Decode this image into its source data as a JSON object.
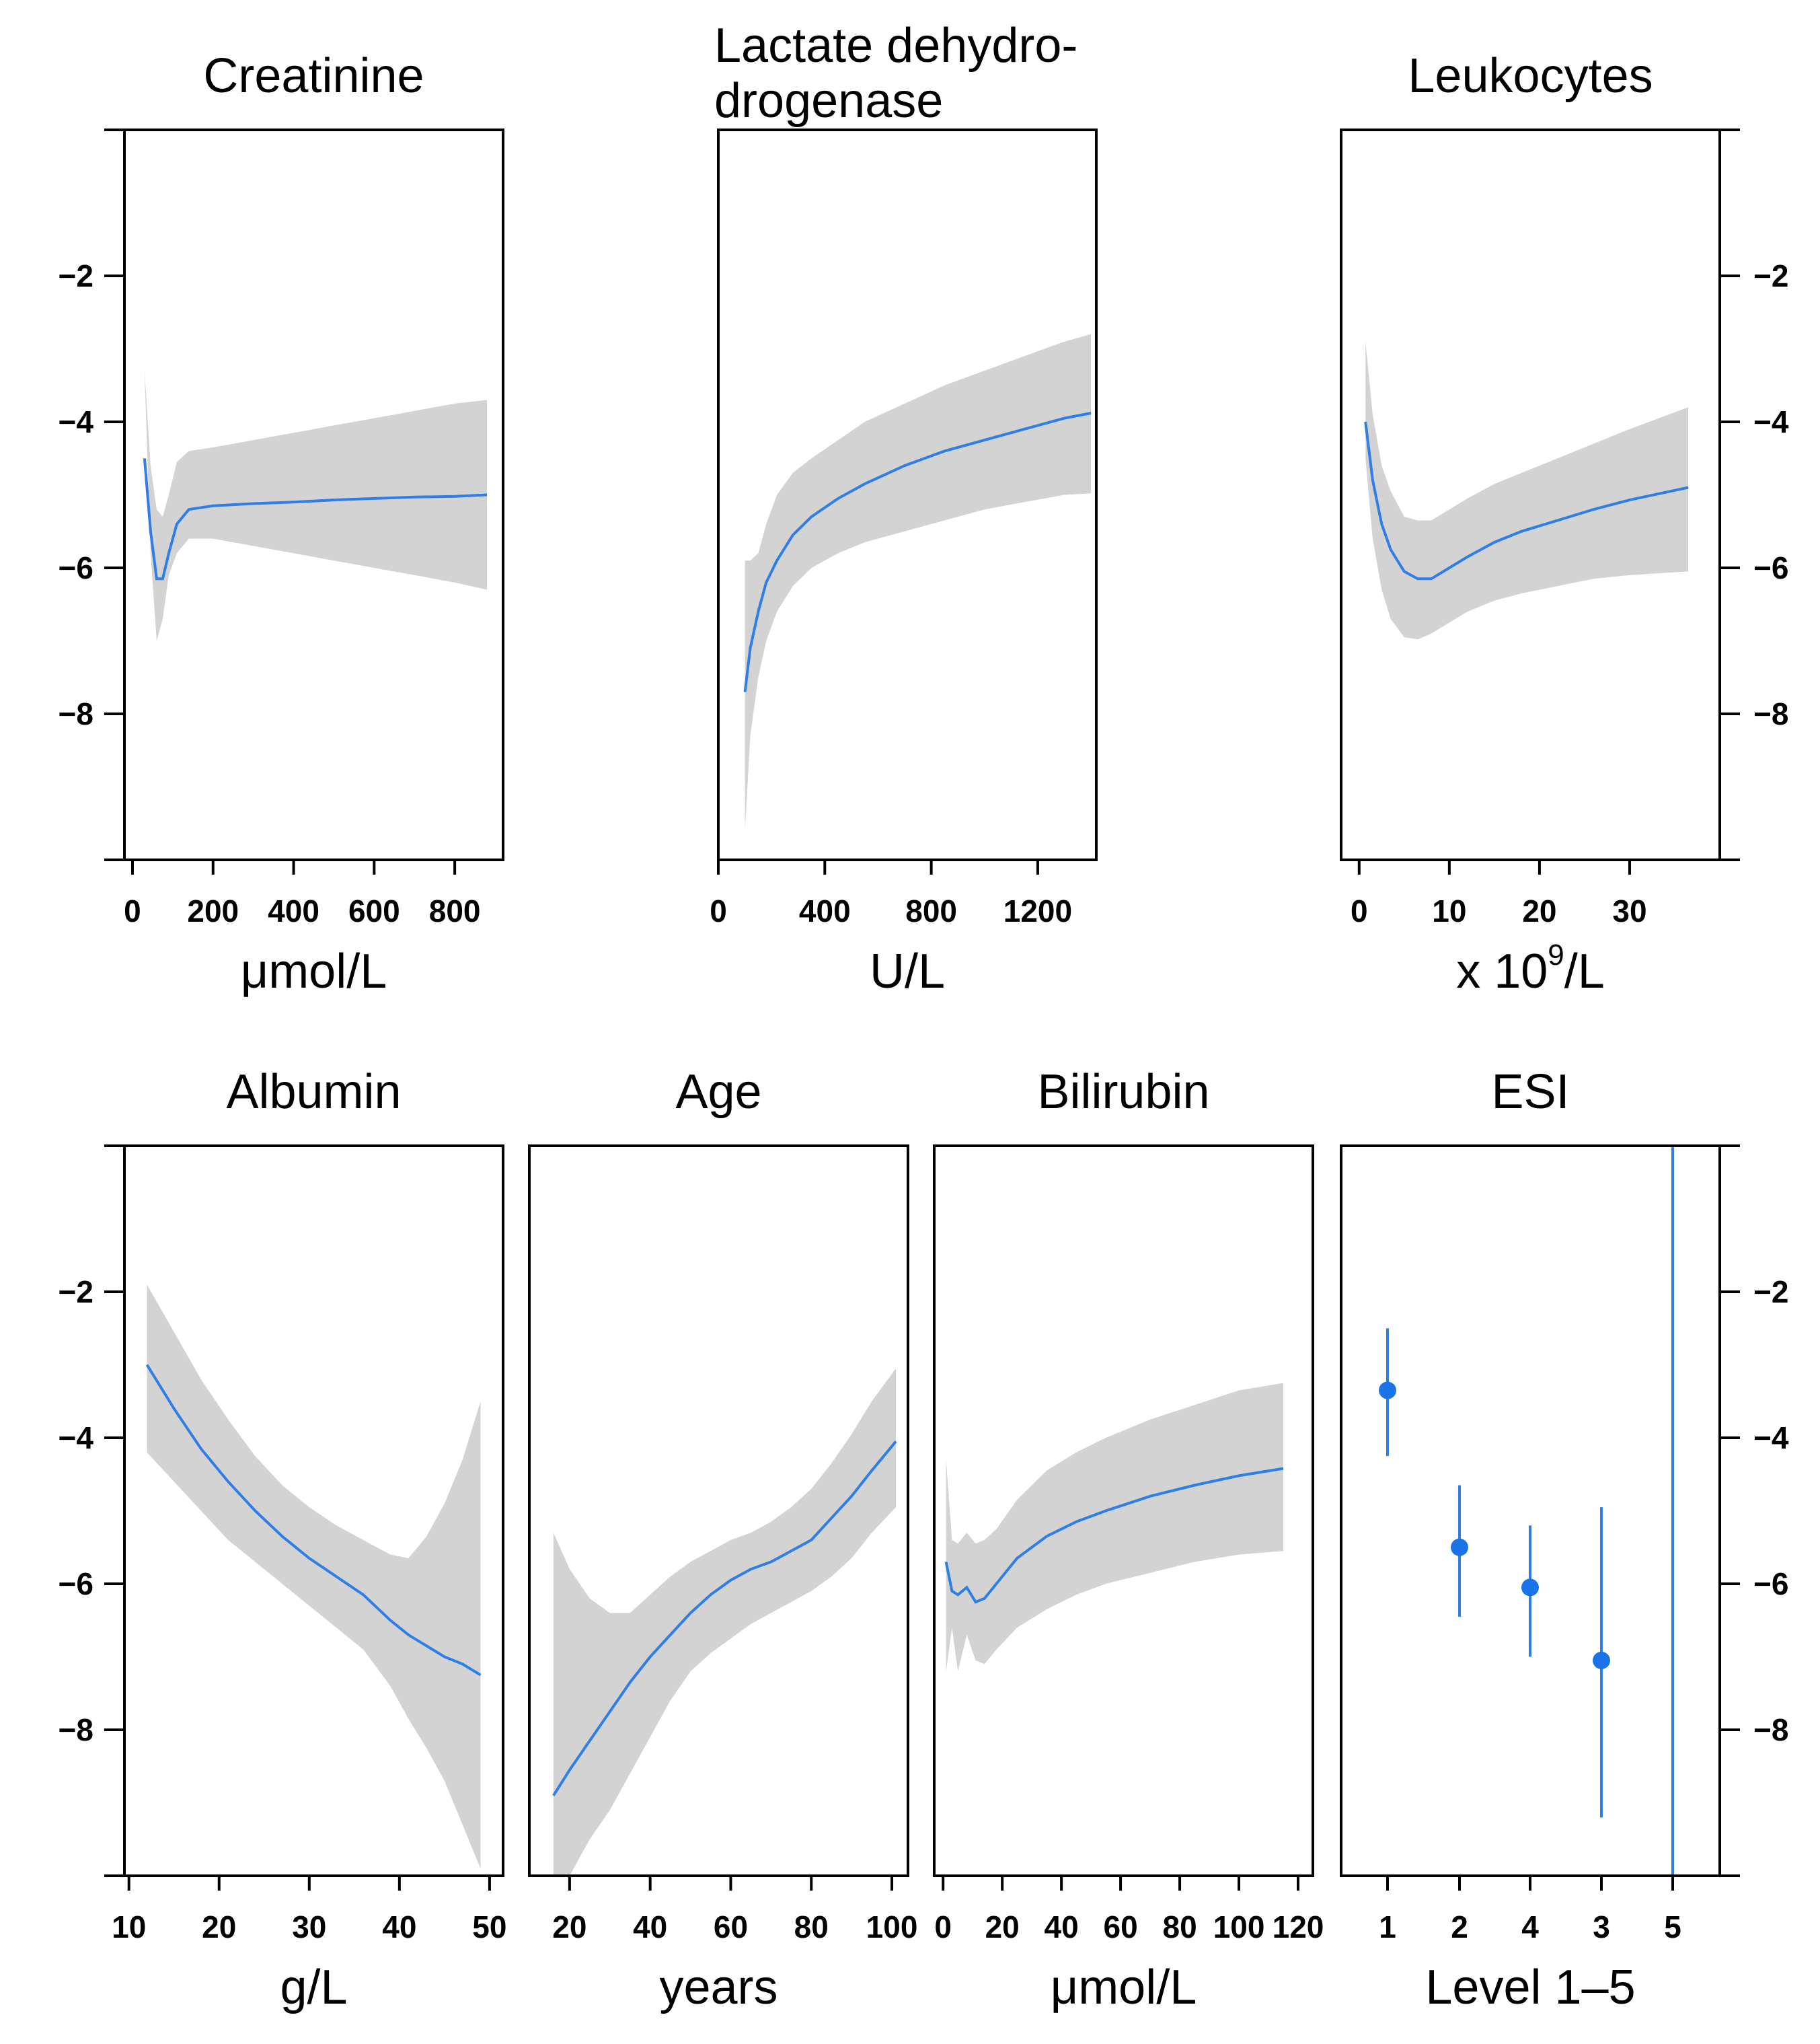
{
  "colors": {
    "curve": "#2f7ee6",
    "band": "#d3d3d3",
    "point": "#1a74e8",
    "axis": "#000000"
  },
  "chart_data": [
    {
      "id": "creatinine",
      "type": "line",
      "title": "Creatinine",
      "xlabel": "μmol/L",
      "xticks": [
        0,
        200,
        400,
        600,
        800
      ],
      "xlim": [
        -20,
        920
      ],
      "yticks": [
        -2,
        -4,
        -6,
        -8
      ],
      "ylim": [
        -10,
        0
      ],
      "yaxis_labels": "left",
      "x": [
        30,
        45,
        60,
        75,
        90,
        110,
        140,
        200,
        300,
        400,
        500,
        600,
        700,
        800,
        880
      ],
      "y": [
        -4.5,
        -5.5,
        -6.15,
        -6.15,
        -5.8,
        -5.4,
        -5.2,
        -5.15,
        -5.12,
        -5.1,
        -5.07,
        -5.05,
        -5.03,
        -5.02,
        -5.0
      ],
      "lower": [
        -3.3,
        -5.8,
        -7.0,
        -6.7,
        -6.1,
        -5.8,
        -5.6,
        -5.6,
        -5.7,
        -5.8,
        -5.9,
        -6.0,
        -6.1,
        -6.2,
        -6.3
      ],
      "upper": [
        -3.3,
        -4.6,
        -5.2,
        -5.3,
        -5.0,
        -4.55,
        -4.4,
        -4.35,
        -4.25,
        -4.15,
        -4.05,
        -3.95,
        -3.85,
        -3.75,
        -3.7
      ]
    },
    {
      "id": "ldh",
      "type": "line",
      "title": "Lactate dehydro-drogenase",
      "title_lines": [
        "Lactate dehydro-",
        "drogenase"
      ],
      "xlabel": "U/L",
      "xticks": [
        0,
        400,
        800,
        1200
      ],
      "xlim": [
        0,
        1420
      ],
      "yticks": [],
      "ylim": [
        -10,
        0
      ],
      "yaxis_labels": "none",
      "x": [
        100,
        120,
        150,
        180,
        220,
        280,
        350,
        450,
        550,
        700,
        850,
        1000,
        1150,
        1300,
        1400
      ],
      "y": [
        -7.7,
        -7.1,
        -6.6,
        -6.2,
        -5.9,
        -5.55,
        -5.3,
        -5.05,
        -4.85,
        -4.6,
        -4.4,
        -4.25,
        -4.1,
        -3.95,
        -3.88
      ],
      "lower": [
        -9.6,
        -8.3,
        -7.5,
        -7.0,
        -6.6,
        -6.25,
        -6.0,
        -5.8,
        -5.65,
        -5.5,
        -5.35,
        -5.2,
        -5.1,
        -5.0,
        -4.98
      ],
      "upper": [
        -5.9,
        -5.9,
        -5.8,
        -5.4,
        -5.0,
        -4.7,
        -4.5,
        -4.25,
        -4.0,
        -3.75,
        -3.5,
        -3.3,
        -3.1,
        -2.9,
        -2.8
      ]
    },
    {
      "id": "leukocytes",
      "type": "line",
      "title": "Leukocytes",
      "xlabel": "x 10⁹/L",
      "xticks": [
        0,
        10,
        20,
        30
      ],
      "xlim": [
        -2,
        40
      ],
      "yticks": [
        -2,
        -4,
        -6,
        -8
      ],
      "ylim": [
        -10,
        0
      ],
      "yaxis_labels": "right",
      "x": [
        0.7,
        1.5,
        2.5,
        3.5,
        5,
        6.5,
        8,
        10,
        12,
        15,
        18,
        22,
        26,
        30,
        36.5
      ],
      "y": [
        -4.0,
        -4.8,
        -5.4,
        -5.75,
        -6.05,
        -6.15,
        -6.15,
        -6.0,
        -5.85,
        -5.65,
        -5.5,
        -5.35,
        -5.2,
        -5.07,
        -4.9
      ],
      "lower": [
        -4.5,
        -5.6,
        -6.3,
        -6.7,
        -6.95,
        -6.98,
        -6.9,
        -6.75,
        -6.6,
        -6.45,
        -6.35,
        -6.25,
        -6.15,
        -6.1,
        -6.05
      ],
      "upper": [
        -2.9,
        -3.9,
        -4.6,
        -4.95,
        -5.3,
        -5.35,
        -5.35,
        -5.2,
        -5.05,
        -4.85,
        -4.7,
        -4.5,
        -4.3,
        -4.1,
        -3.8
      ]
    },
    {
      "id": "albumin",
      "type": "line",
      "title": "Albumin",
      "xlabel": "g/L",
      "xticks": [
        10,
        20,
        30,
        40,
        50
      ],
      "xlim": [
        9.5,
        51.5
      ],
      "yticks": [
        -2,
        -4,
        -6,
        -8
      ],
      "ylim": [
        -10,
        0
      ],
      "yaxis_labels": "left",
      "x": [
        12,
        15,
        18,
        21,
        24,
        27,
        30,
        33,
        36,
        39,
        41,
        43,
        45,
        47,
        49
      ],
      "y": [
        -3.0,
        -3.6,
        -4.15,
        -4.6,
        -5.0,
        -5.35,
        -5.65,
        -5.9,
        -6.15,
        -6.5,
        -6.7,
        -6.85,
        -7.0,
        -7.1,
        -7.25
      ],
      "lower": [
        -4.2,
        -4.6,
        -5.0,
        -5.4,
        -5.7,
        -6.0,
        -6.3,
        -6.6,
        -6.9,
        -7.4,
        -7.85,
        -8.25,
        -8.7,
        -9.3,
        -9.9
      ],
      "upper": [
        -1.9,
        -2.55,
        -3.2,
        -3.75,
        -4.25,
        -4.65,
        -4.95,
        -5.2,
        -5.4,
        -5.6,
        -5.65,
        -5.35,
        -4.9,
        -4.3,
        -3.5
      ]
    },
    {
      "id": "age",
      "type": "line",
      "title": "Age",
      "xlabel": "years",
      "xticks": [
        20,
        40,
        60,
        80,
        100
      ],
      "xlim": [
        10,
        104
      ],
      "yticks": [],
      "ylim": [
        -10,
        0
      ],
      "yaxis_labels": "none",
      "x": [
        16,
        20,
        25,
        30,
        35,
        40,
        45,
        50,
        55,
        60,
        65,
        70,
        75,
        80,
        85,
        90,
        95,
        101
      ],
      "y": [
        -8.9,
        -8.55,
        -8.15,
        -7.75,
        -7.35,
        -7.0,
        -6.7,
        -6.4,
        -6.15,
        -5.95,
        -5.8,
        -5.7,
        -5.55,
        -5.4,
        -5.1,
        -4.8,
        -4.45,
        -4.05
      ],
      "lower": [
        -10.0,
        -10.0,
        -9.5,
        -9.1,
        -8.6,
        -8.1,
        -7.6,
        -7.2,
        -6.95,
        -6.75,
        -6.55,
        -6.4,
        -6.25,
        -6.1,
        -5.9,
        -5.65,
        -5.3,
        -4.95
      ],
      "upper": [
        -5.3,
        -5.8,
        -6.2,
        -6.4,
        -6.4,
        -6.15,
        -5.9,
        -5.7,
        -5.55,
        -5.4,
        -5.3,
        -5.15,
        -4.95,
        -4.7,
        -4.35,
        -3.95,
        -3.5,
        -3.05
      ]
    },
    {
      "id": "bilirubin",
      "type": "line",
      "title": "Bilirubin",
      "xlabel": "μmol/L",
      "xticks": [
        0,
        20,
        40,
        60,
        80,
        100,
        120
      ],
      "xlim": [
        -3,
        125
      ],
      "yticks": [],
      "ylim": [
        -10,
        0
      ],
      "yaxis_labels": "none",
      "x": [
        1,
        3,
        5,
        8,
        11,
        14,
        18,
        25,
        35,
        45,
        55,
        70,
        85,
        100,
        115
      ],
      "y": [
        -5.7,
        -6.1,
        -6.15,
        -6.05,
        -6.25,
        -6.2,
        -6.0,
        -5.65,
        -5.35,
        -5.15,
        -5.0,
        -4.8,
        -4.65,
        -4.52,
        -4.42
      ],
      "lower": [
        -7.2,
        -6.6,
        -7.2,
        -6.7,
        -7.05,
        -7.1,
        -6.9,
        -6.6,
        -6.35,
        -6.15,
        -6.0,
        -5.85,
        -5.7,
        -5.6,
        -5.55
      ],
      "upper": [
        -4.3,
        -5.4,
        -5.45,
        -5.3,
        -5.45,
        -5.4,
        -5.25,
        -4.85,
        -4.45,
        -4.2,
        -4.0,
        -3.75,
        -3.55,
        -3.35,
        -3.25
      ]
    },
    {
      "id": "esi",
      "type": "scatter",
      "title": "ESI",
      "xlabel": "Level 1–5",
      "categories": [
        "1",
        "2",
        "4",
        "3",
        "5"
      ],
      "values": [
        -3.35,
        -5.5,
        -6.05,
        -7.05,
        null
      ],
      "lower": [
        -4.25,
        -6.45,
        -7.0,
        -9.2,
        null
      ],
      "upper": [
        -2.5,
        -4.65,
        -5.2,
        -4.95,
        null
      ],
      "vertical_line_at": "5",
      "yticks": [
        -2,
        -4,
        -6,
        -8
      ],
      "ylim": [
        -10,
        0
      ],
      "yaxis_labels": "right"
    }
  ]
}
